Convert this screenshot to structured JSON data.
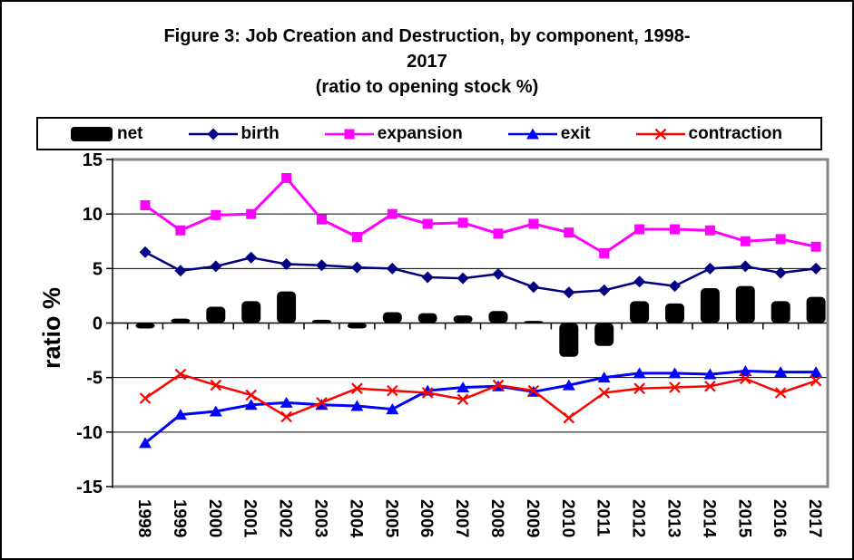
{
  "figure": {
    "title_line1": "Figure 3: Job Creation and Destruction, by component, 1998-",
    "title_line2": "2017",
    "subtitle": "(ratio to opening stock %)"
  },
  "chart_data": {
    "type": "combo-bar-line",
    "title": "Figure 3: Job Creation and Destruction, by component, 1998-2017",
    "subtitle": "(ratio to opening stock %)",
    "xlabel": "",
    "ylabel": "ratio %",
    "ylim": [
      -15,
      15
    ],
    "yticks": [
      15,
      10,
      5,
      0,
      -5,
      -10,
      -15
    ],
    "grid": true,
    "legend_position": "top",
    "categories": [
      "1998",
      "1999",
      "2000",
      "2001",
      "2002",
      "2003",
      "2004",
      "2005",
      "2006",
      "2007",
      "2008",
      "2009",
      "2010",
      "2011",
      "2012",
      "2013",
      "2014",
      "2015",
      "2016",
      "2017"
    ],
    "series": [
      {
        "name": "net",
        "type": "bar",
        "marker": "bar",
        "color": "#000000",
        "values": [
          -0.5,
          0.4,
          1.5,
          2.0,
          2.9,
          0.3,
          -0.5,
          1.0,
          0.9,
          0.7,
          1.1,
          0.2,
          -3.1,
          -2.1,
          2.0,
          1.8,
          3.2,
          3.4,
          2.0,
          2.4
        ]
      },
      {
        "name": "birth",
        "type": "line",
        "marker": "diamond",
        "color": "#000080",
        "values": [
          6.5,
          4.8,
          5.2,
          6.0,
          5.4,
          5.3,
          5.1,
          5.0,
          4.2,
          4.1,
          4.5,
          3.3,
          2.8,
          3.0,
          3.8,
          3.4,
          5.0,
          5.2,
          4.6,
          5.0
        ]
      },
      {
        "name": "expansion",
        "type": "line",
        "marker": "square",
        "color": "#FF00FF",
        "values": [
          10.8,
          8.5,
          9.9,
          10.0,
          13.3,
          9.5,
          7.9,
          10.0,
          9.1,
          9.2,
          8.2,
          9.1,
          8.3,
          6.4,
          8.6,
          8.6,
          8.5,
          7.5,
          7.7,
          7.0
        ]
      },
      {
        "name": "exit",
        "type": "line",
        "marker": "triangle",
        "color": "#0000FF",
        "values": [
          -11.0,
          -8.4,
          -8.1,
          -7.5,
          -7.3,
          -7.5,
          -7.6,
          -7.9,
          -6.2,
          -5.9,
          -5.8,
          -6.3,
          -5.7,
          -5.0,
          -4.6,
          -4.6,
          -4.7,
          -4.4,
          -4.5,
          -4.5
        ]
      },
      {
        "name": "contraction",
        "type": "line",
        "marker": "x",
        "color": "#FF0000",
        "values": [
          -6.9,
          -4.7,
          -5.7,
          -6.6,
          -8.6,
          -7.3,
          -6.0,
          -6.2,
          -6.4,
          -7.0,
          -5.7,
          -6.2,
          -8.7,
          -6.4,
          -6.0,
          -5.9,
          -5.8,
          -5.1,
          -6.4,
          -5.3
        ]
      }
    ]
  }
}
